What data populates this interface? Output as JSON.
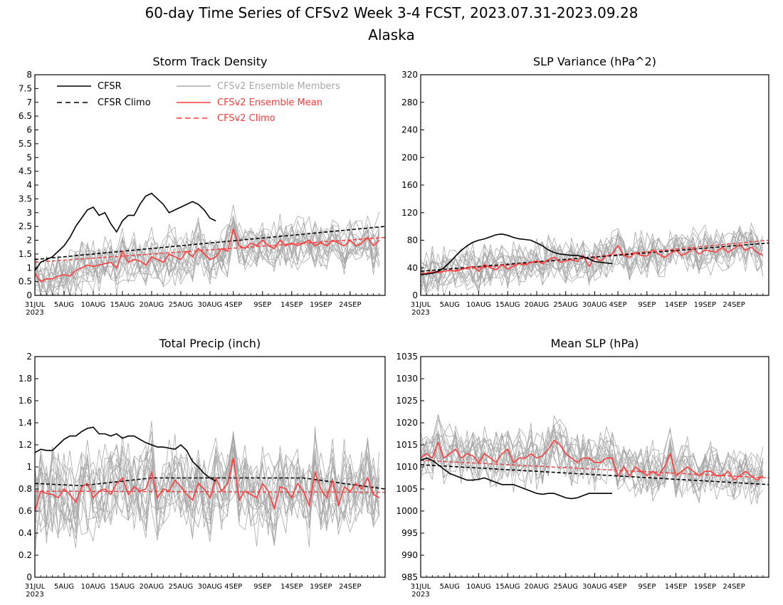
{
  "figure": {
    "title_line1": "60-day Time Series of CFSv2 Week 3-4 FCST, 2023.07.31-2023.09.28",
    "title_line2": "Alaska"
  },
  "colors": {
    "cfsr": "#000000",
    "members": "#a8a8a8",
    "ens_mean": "#ff3c3c",
    "cfsv2_climo": "#ff3c3c"
  },
  "legend": [
    {
      "label": "CFSR",
      "style": "solid",
      "color": "#000000"
    },
    {
      "label": "CFSR Climo",
      "style": "dashed",
      "color": "#000000"
    },
    {
      "label": "CFSv2 Ensemble Members",
      "style": "solid",
      "color": "#a8a8a8"
    },
    {
      "label": "CFSv2 Ensemble Mean",
      "style": "solid",
      "color": "#ff3c3c"
    },
    {
      "label": "CFSv2 Climo",
      "style": "dashed",
      "color": "#ff3c3c"
    }
  ],
  "x_axis": {
    "tick_days": [
      0,
      5,
      10,
      15,
      20,
      25,
      30,
      34,
      39,
      44,
      49,
      54
    ],
    "tick_labels": [
      "31JUL",
      "5AUG",
      "10AUG",
      "15AUG",
      "20AUG",
      "25AUG",
      "30AUG",
      "4SEP",
      "9SEP",
      "14SEP",
      "19SEP",
      "24SEP"
    ],
    "year_label": "2023",
    "range": [
      0,
      60
    ]
  },
  "chart_data": [
    {
      "type": "line",
      "title": "Storm Track Density",
      "ylim": [
        0,
        8
      ],
      "yticks": [
        "0",
        "0.5",
        "1",
        "1.5",
        "2",
        "2.5",
        "3",
        "3.5",
        "4",
        "4.5",
        "5",
        "5.5",
        "6",
        "6.5",
        "7",
        "7.5",
        "8"
      ],
      "ytick_values": [
        0,
        0.5,
        1,
        1.5,
        2,
        2.5,
        3,
        3.5,
        4,
        4.5,
        5,
        5.5,
        6,
        6.5,
        7,
        7.5,
        8
      ],
      "cfsr": {
        "x": [
          0,
          1,
          2,
          3,
          4,
          5,
          6,
          7,
          8,
          9,
          10,
          11,
          12,
          13,
          14,
          15,
          16,
          17,
          18,
          19,
          20,
          21,
          22,
          23,
          24,
          25,
          26,
          27,
          28,
          29,
          30,
          31
        ],
        "y": [
          0.9,
          1.2,
          1.3,
          1.4,
          1.6,
          1.8,
          2.1,
          2.5,
          2.8,
          3.1,
          3.2,
          2.9,
          3.0,
          2.6,
          2.3,
          2.7,
          2.9,
          2.9,
          3.3,
          3.6,
          3.7,
          3.5,
          3.3,
          3.0,
          3.1,
          3.2,
          3.3,
          3.4,
          3.3,
          3.1,
          2.8,
          2.7
        ]
      },
      "cfsr_climo": {
        "start": 1.3,
        "end": 2.5
      },
      "cfsv2_climo": {
        "start": 1.2,
        "end": 2.1
      },
      "ens_mean": [
        0.8,
        0.5,
        0.6,
        0.6,
        0.7,
        0.75,
        0.7,
        0.9,
        1.0,
        1.1,
        1.05,
        1.1,
        1.15,
        1.2,
        1.0,
        1.6,
        1.2,
        1.3,
        1.25,
        1.1,
        1.4,
        1.3,
        1.2,
        1.5,
        1.4,
        1.3,
        1.6,
        1.4,
        1.7,
        1.5,
        1.3,
        1.4,
        1.7,
        1.6,
        2.4,
        1.8,
        1.7,
        1.9,
        1.8,
        2.0,
        1.8,
        1.7,
        2.0,
        1.8,
        1.9,
        1.8,
        1.9,
        2.0,
        1.8,
        1.9,
        1.8,
        2.0,
        1.9,
        1.8,
        2.0,
        1.8,
        1.9,
        2.1,
        1.8,
        2.0
      ],
      "members": {
        "count": 16,
        "spread": 0.8
      }
    },
    {
      "type": "line",
      "title": "SLP Variance (hPa^2)",
      "ylim": [
        0,
        320
      ],
      "yticks": [
        "0",
        "40",
        "80",
        "120",
        "160",
        "200",
        "240",
        "280",
        "320"
      ],
      "ytick_values": [
        0,
        40,
        80,
        120,
        160,
        200,
        240,
        280,
        320
      ],
      "cfsr": {
        "x": [
          0,
          1,
          2,
          3,
          4,
          5,
          6,
          7,
          8,
          9,
          10,
          11,
          12,
          13,
          14,
          15,
          16,
          17,
          18,
          19,
          20,
          21,
          22,
          23,
          24,
          25,
          26,
          27,
          28,
          29,
          30,
          31,
          32,
          33
        ],
        "y": [
          30,
          31,
          32,
          35,
          40,
          48,
          57,
          65,
          72,
          77,
          80,
          82,
          85,
          88,
          89,
          87,
          84,
          82,
          81,
          80,
          76,
          72,
          66,
          62,
          60,
          59,
          58,
          58,
          56,
          53,
          49,
          48,
          47,
          46
        ]
      },
      "cfsr_climo": {
        "start": 35,
        "end": 76
      },
      "cfsv2_climo": {
        "start": 32,
        "end": 80
      },
      "ens_mean": [
        30,
        32,
        34,
        33,
        35,
        36,
        35,
        38,
        40,
        42,
        35,
        45,
        40,
        37,
        45,
        38,
        42,
        46,
        44,
        48,
        50,
        46,
        52,
        55,
        48,
        50,
        52,
        49,
        58,
        42,
        55,
        50,
        57,
        60,
        72,
        58,
        55,
        62,
        58,
        57,
        66,
        60,
        55,
        61,
        65,
        58,
        62,
        68,
        60,
        66,
        64,
        63,
        70,
        62,
        68,
        74,
        65,
        70,
        62,
        58
      ],
      "members": {
        "count": 16,
        "spread": 28
      }
    },
    {
      "type": "line",
      "title": "Total Precip (inch)",
      "ylim": [
        0,
        2
      ],
      "yticks": [
        "0",
        "0.2",
        "0.4",
        "0.6",
        "0.8",
        "1",
        "1.2",
        "1.4",
        "1.6",
        "1.8",
        "2"
      ],
      "ytick_values": [
        0,
        0.2,
        0.4,
        0.6,
        0.8,
        1.0,
        1.2,
        1.4,
        1.6,
        1.8,
        2.0
      ],
      "cfsr": {
        "x": [
          0,
          1,
          2,
          3,
          4,
          5,
          6,
          7,
          8,
          9,
          10,
          11,
          12,
          13,
          14,
          15,
          16,
          17,
          18,
          19,
          20,
          21,
          22,
          23,
          24,
          25,
          26,
          27,
          28,
          29,
          30,
          31
        ],
        "y": [
          1.13,
          1.16,
          1.15,
          1.15,
          1.2,
          1.25,
          1.28,
          1.28,
          1.32,
          1.35,
          1.36,
          1.3,
          1.3,
          1.28,
          1.3,
          1.26,
          1.28,
          1.28,
          1.25,
          1.22,
          1.2,
          1.18,
          1.18,
          1.17,
          1.16,
          1.2,
          1.15,
          1.05,
          1.0,
          0.94,
          0.9,
          0.87
        ]
      },
      "cfsr_climo": {
        "points": [
          [
            0,
            0.85
          ],
          [
            8,
            0.83
          ],
          [
            20,
            0.9
          ],
          [
            30,
            0.9
          ],
          [
            46,
            0.9
          ],
          [
            60,
            0.8
          ]
        ]
      },
      "cfsv2_climo": {
        "start": 0.78,
        "end": 0.77
      },
      "ens_mean": [
        0.6,
        0.78,
        0.76,
        0.75,
        0.72,
        0.8,
        0.75,
        0.68,
        0.82,
        0.85,
        0.72,
        0.78,
        0.8,
        0.75,
        0.85,
        0.9,
        0.75,
        0.82,
        0.78,
        0.8,
        0.95,
        0.72,
        0.8,
        0.78,
        0.88,
        0.82,
        0.75,
        0.7,
        0.85,
        0.8,
        0.72,
        0.9,
        0.78,
        0.85,
        1.08,
        0.7,
        0.78,
        0.75,
        0.72,
        0.85,
        0.78,
        0.62,
        0.82,
        0.8,
        0.72,
        0.85,
        0.78,
        0.65,
        0.95,
        0.8,
        0.72,
        0.88,
        0.65,
        0.82,
        0.78,
        0.85,
        0.8,
        0.9,
        0.75,
        0.72
      ],
      "members": {
        "count": 16,
        "spread": 0.35
      }
    },
    {
      "type": "line",
      "title": "Mean SLP (hPa)",
      "ylim": [
        985,
        1035
      ],
      "yticks": [
        "985",
        "990",
        "995",
        "1000",
        "1005",
        "1010",
        "1015",
        "1020",
        "1025",
        "1030",
        "1035"
      ],
      "ytick_values": [
        985,
        990,
        995,
        1000,
        1005,
        1010,
        1015,
        1020,
        1025,
        1030,
        1035
      ],
      "cfsr": {
        "x": [
          0,
          1,
          2,
          3,
          4,
          5,
          6,
          7,
          8,
          9,
          10,
          11,
          12,
          13,
          14,
          15,
          16,
          17,
          18,
          19,
          20,
          21,
          22,
          23,
          24,
          25,
          26,
          27,
          28,
          29,
          30,
          31,
          32,
          33
        ],
        "y": [
          1011.5,
          1012,
          1011.5,
          1010.5,
          1009.5,
          1008.5,
          1008,
          1007.5,
          1007,
          1007,
          1007.2,
          1007.5,
          1007,
          1006.5,
          1006,
          1006,
          1006,
          1005.5,
          1005,
          1004.5,
          1004,
          1003.8,
          1004,
          1004,
          1003.5,
          1003,
          1002.8,
          1003,
          1003.5,
          1004,
          1004,
          1004,
          1004,
          1004
        ]
      },
      "cfsr_climo": {
        "start": 1010.5,
        "end": 1006
      },
      "cfsv2_climo": {
        "start": 1011.5,
        "end": 1007.5
      },
      "ens_mean": [
        1012,
        1013,
        1012,
        1015.5,
        1012,
        1013,
        1014,
        1012,
        1013,
        1012.5,
        1011,
        1013,
        1012,
        1011,
        1013,
        1014,
        1011,
        1012,
        1012,
        1013,
        1012,
        1012.5,
        1014,
        1016,
        1015,
        1013,
        1012,
        1011,
        1012,
        1012,
        1011,
        1011,
        1012,
        1012,
        1008,
        1010,
        1008,
        1010,
        1009,
        1008,
        1009,
        1008,
        1010,
        1013,
        1008,
        1009,
        1010,
        1009,
        1008,
        1009,
        1009,
        1008,
        1008,
        1009,
        1007,
        1008,
        1009,
        1008,
        1007,
        1008
      ],
      "members": {
        "count": 16,
        "spread": 5.5
      }
    }
  ]
}
